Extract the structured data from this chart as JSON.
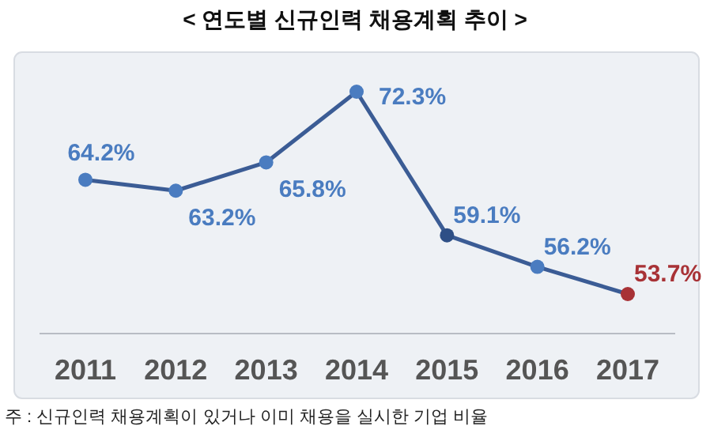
{
  "chart_data": {
    "type": "line",
    "title": "< 연도별 신규인력 채용계획 추이 >",
    "categories": [
      "2011",
      "2012",
      "2013",
      "2014",
      "2015",
      "2016",
      "2017"
    ],
    "series": [
      {
        "color": "#3b5c95",
        "colors": [
          "#4a7cc0",
          "#4a7cc0",
          "#4a7cc0",
          "#4a7cc0",
          "#2e4f86",
          "#4a7cc0",
          "#a83236"
        ],
        "values": [
          64.2,
          63.2,
          65.8,
          72.3,
          59.1,
          56.2,
          53.7
        ],
        "value_labels": [
          "64.2%",
          "63.2%",
          "65.8%",
          "72.3%",
          "59.1%",
          "56.2%",
          "53.7%"
        ]
      }
    ],
    "marker": "circle",
    "line_style": "solid",
    "annotations": [
      "주 : 신규인력 채용계획이 있거나 이미 채용을 실시한 기업 비율"
    ]
  }
}
